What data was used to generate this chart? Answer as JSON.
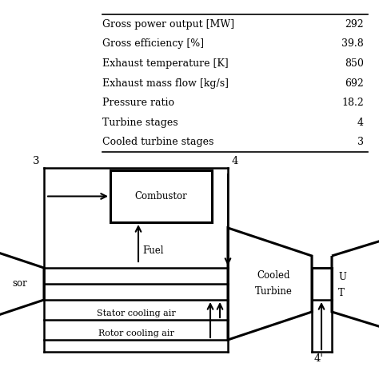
{
  "bg_color": "#ffffff",
  "table_rows": [
    [
      "Gross power output [MW]",
      "292"
    ],
    [
      "Gross efficiency [%]",
      "39.8"
    ],
    [
      "Exhaust temperature [K]",
      "850"
    ],
    [
      "Exhaust mass flow [kg/s]",
      "692"
    ],
    [
      "Pressure ratio",
      "18.2"
    ],
    [
      "Turbine stages",
      "4"
    ],
    [
      "Cooled turbine stages",
      "3"
    ]
  ],
  "font_family": "DejaVu Serif",
  "lw": 1.8,
  "lw_thick": 2.2,
  "fs_table": 9.0,
  "fs_diag": 8.5,
  "fs_label": 8.0
}
